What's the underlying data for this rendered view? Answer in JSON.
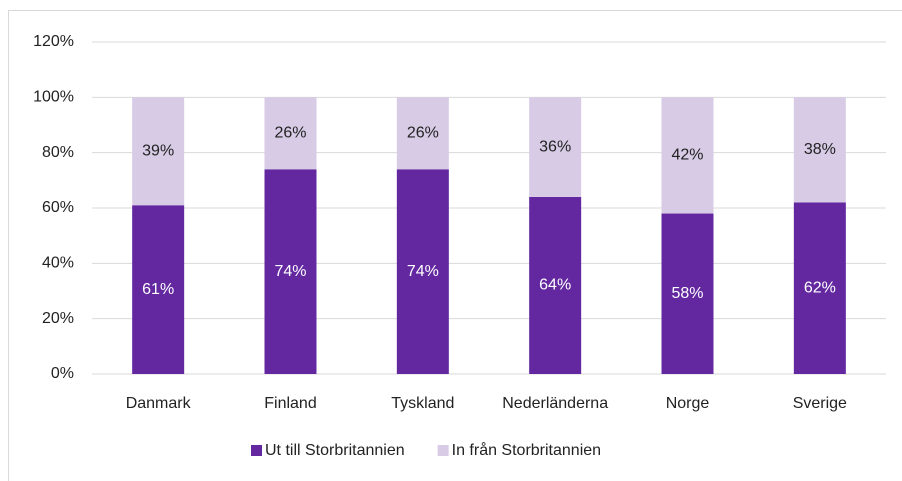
{
  "chart_data": {
    "type": "stacked_bar",
    "categories": [
      "Danmark",
      "Finland",
      "Tyskland",
      "Nederländerna",
      "Norge",
      "Sverige"
    ],
    "series": [
      {
        "name": "Ut till Storbritannien",
        "color": "#6328a0",
        "label_color": "#ffffff",
        "values": [
          61,
          74,
          74,
          64,
          58,
          62
        ],
        "value_labels": [
          "61%",
          "74%",
          "74%",
          "64%",
          "58%",
          "62%"
        ]
      },
      {
        "name": "In från Storbritannien",
        "color": "#d7cbe6",
        "label_color": "#222222",
        "values": [
          39,
          26,
          26,
          36,
          42,
          38
        ],
        "value_labels": [
          "39%",
          "26%",
          "26%",
          "36%",
          "42%",
          "38%"
        ]
      }
    ],
    "ylim": [
      0,
      120
    ],
    "yticks": [
      {
        "value": 0,
        "label": "0%"
      },
      {
        "value": 20,
        "label": "20%"
      },
      {
        "value": 40,
        "label": "40%"
      },
      {
        "value": 60,
        "label": "60%"
      },
      {
        "value": 80,
        "label": "80%"
      },
      {
        "value": 100,
        "label": "100%"
      },
      {
        "value": 120,
        "label": "120%"
      }
    ],
    "grid": true,
    "legend": "bottom"
  }
}
